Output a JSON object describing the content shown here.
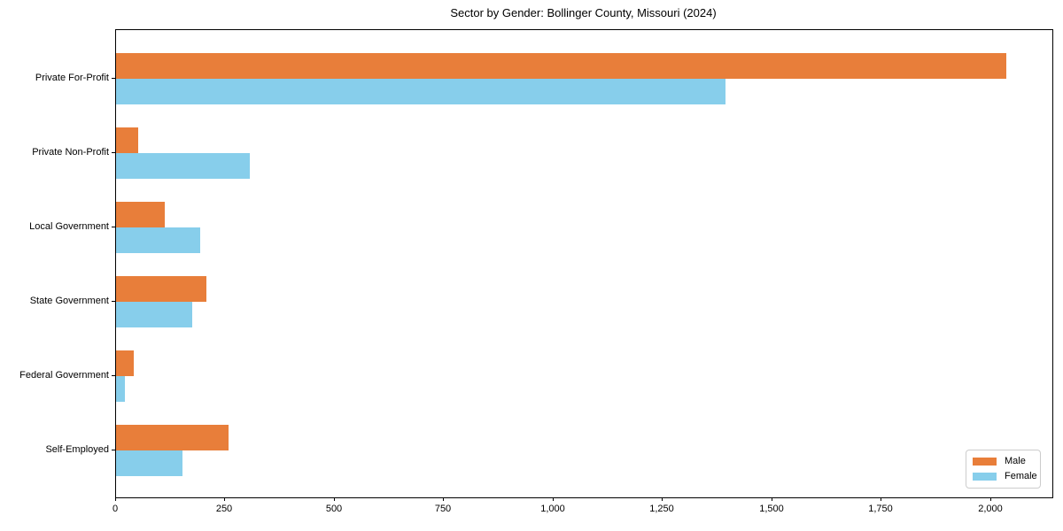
{
  "figure": {
    "background": "#ffffff",
    "frame_color": "#000000",
    "text_color": "#000000"
  },
  "chart_data": {
    "type": "bar",
    "orientation": "horizontal",
    "title": "Sector by Gender: Bollinger County, Missouri (2024)",
    "xlabel": "",
    "ylabel": "",
    "categories": [
      "Private For-Profit",
      "Private Non-Profit",
      "Local Government",
      "State Government",
      "Federal Government",
      "Self-Employed"
    ],
    "series": [
      {
        "name": "Male",
        "color": "#e87e3a",
        "values": [
          2035,
          51,
          112,
          206,
          40,
          258
        ]
      },
      {
        "name": "Female",
        "color": "#87ceeb",
        "values": [
          1393,
          306,
          193,
          175,
          20,
          152
        ]
      }
    ],
    "xlim": [
      0,
      2140
    ],
    "x_ticks": [
      0,
      250,
      500,
      750,
      1000,
      1250,
      1500,
      1750,
      2000
    ],
    "x_tick_labels": [
      "0",
      "250",
      "500",
      "750",
      "1,000",
      "1,250",
      "1,500",
      "1,750",
      "2,000"
    ],
    "grid": false,
    "legend": {
      "position": "lower right",
      "entries": [
        "Male",
        "Female"
      ]
    }
  }
}
